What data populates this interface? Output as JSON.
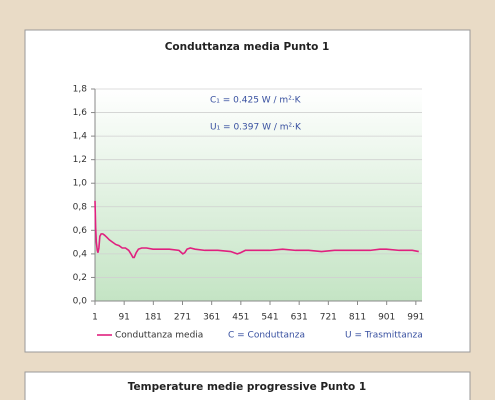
{
  "chart_data": [
    {
      "type": "line",
      "title": "Conduttanza media Punto 1",
      "annotations": [
        "C₁ = 0.425 W / m²·K",
        "U₁ = 0.397 W / m²·K"
      ],
      "legend_notes": [
        "C = Conduttanza",
        "U = Trasmittanza"
      ],
      "x": [
        1,
        3,
        5,
        8,
        10,
        13,
        16,
        20,
        25,
        30,
        38,
        45,
        55,
        65,
        75,
        85,
        95,
        105,
        112,
        118,
        122,
        128,
        135,
        145,
        160,
        180,
        200,
        230,
        260,
        272,
        278,
        285,
        295,
        310,
        340,
        380,
        420,
        440,
        450,
        465,
        500,
        540,
        580,
        620,
        660,
        700,
        740,
        760,
        800,
        850,
        880,
        900,
        940,
        980,
        1000
      ],
      "series": [
        {
          "name": "Conduttanza media",
          "color": "#e0207f",
          "values": [
            0.85,
            0.62,
            0.5,
            0.43,
            0.41,
            0.45,
            0.55,
            0.57,
            0.57,
            0.56,
            0.54,
            0.52,
            0.5,
            0.48,
            0.47,
            0.45,
            0.45,
            0.43,
            0.4,
            0.37,
            0.37,
            0.41,
            0.44,
            0.45,
            0.45,
            0.44,
            0.44,
            0.44,
            0.43,
            0.4,
            0.41,
            0.44,
            0.45,
            0.44,
            0.43,
            0.43,
            0.42,
            0.4,
            0.41,
            0.43,
            0.43,
            0.43,
            0.44,
            0.43,
            0.43,
            0.42,
            0.43,
            0.43,
            0.43,
            0.43,
            0.44,
            0.44,
            0.43,
            0.43,
            0.42
          ]
        }
      ],
      "xlim": [
        1,
        1010
      ],
      "xticks": [
        1,
        91,
        181,
        271,
        361,
        451,
        541,
        631,
        721,
        811,
        901,
        991
      ],
      "ylim": [
        0,
        1.8
      ],
      "yticks": [
        {
          "value": 0,
          "label": "0,0"
        },
        {
          "value": 0.2,
          "label": "0,2"
        },
        {
          "value": 0.4,
          "label": "0,4"
        },
        {
          "value": 0.6,
          "label": "0,6"
        },
        {
          "value": 0.8,
          "label": "0,8"
        },
        {
          "value": 1,
          "label": "1,0"
        },
        {
          "value": 1.2,
          "label": "1,2"
        },
        {
          "value": 1.4,
          "label": "1,4"
        },
        {
          "value": 1.6,
          "label": "1,6"
        },
        {
          "value": 1.8,
          "label": "1,8"
        }
      ],
      "grid": true
    },
    {
      "type": "line",
      "title": "Temperature medie progressive Punto 1"
    }
  ]
}
